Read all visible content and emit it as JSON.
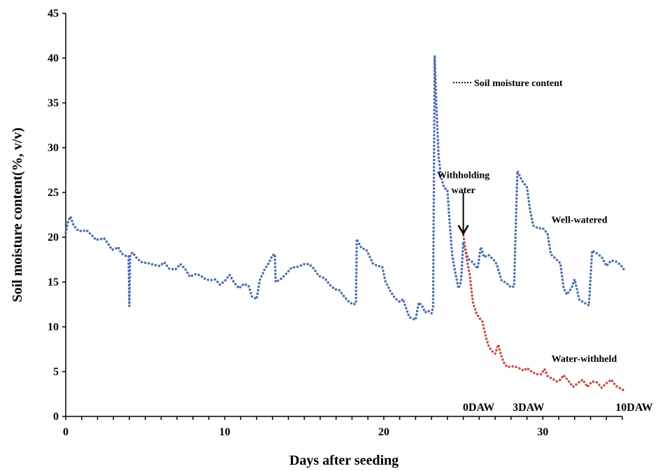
{
  "chart_data": {
    "type": "line",
    "xlabel": "Days after seeding",
    "ylabel": "Soil moisture content(%, v/v)",
    "xlim": [
      0,
      35
    ],
    "ylim": [
      0,
      45
    ],
    "x_ticks": [
      0,
      10,
      20,
      30
    ],
    "y_ticks": [
      0,
      5,
      10,
      15,
      20,
      25,
      30,
      35,
      40,
      45
    ],
    "grid": false,
    "legend": {
      "label": "Soil moisture content",
      "placement": "top-right"
    },
    "series": [
      {
        "name": "Well-watered",
        "color": "#4F6FAF",
        "style": "dotted",
        "points": [
          [
            0,
            20.5
          ],
          [
            0.15,
            21.8
          ],
          [
            0.3,
            22.3
          ],
          [
            0.5,
            21.3
          ],
          [
            0.8,
            20.7
          ],
          [
            1.1,
            20.7
          ],
          [
            1.3,
            20.8
          ],
          [
            1.6,
            20.3
          ],
          [
            1.9,
            19.7
          ],
          [
            2.2,
            19.8
          ],
          [
            2.4,
            19.9
          ],
          [
            2.7,
            19.2
          ],
          [
            2.9,
            18.6
          ],
          [
            3.1,
            18.7
          ],
          [
            3.3,
            18.9
          ],
          [
            3.5,
            18.2
          ],
          [
            3.8,
            17.9
          ],
          [
            3.95,
            17.9
          ],
          [
            4.0,
            12.3
          ],
          [
            4.05,
            18.0
          ],
          [
            4.2,
            18.3
          ],
          [
            4.5,
            17.6
          ],
          [
            4.8,
            17.2
          ],
          [
            5.2,
            17.1
          ],
          [
            5.6,
            16.9
          ],
          [
            5.9,
            16.8
          ],
          [
            6.2,
            17.2
          ],
          [
            6.5,
            16.5
          ],
          [
            6.9,
            16.4
          ],
          [
            7.2,
            17.0
          ],
          [
            7.5,
            16.5
          ],
          [
            7.8,
            15.6
          ],
          [
            8.2,
            15.9
          ],
          [
            8.5,
            15.7
          ],
          [
            8.8,
            15.3
          ],
          [
            9.1,
            15.2
          ],
          [
            9.4,
            15.3
          ],
          [
            9.7,
            14.7
          ],
          [
            10.0,
            15.1
          ],
          [
            10.3,
            15.8
          ],
          [
            10.6,
            14.9
          ],
          [
            10.9,
            14.3
          ],
          [
            11.2,
            14.8
          ],
          [
            11.5,
            14.6
          ],
          [
            11.7,
            13.4
          ],
          [
            12.0,
            13.1
          ],
          [
            12.2,
            15.2
          ],
          [
            12.5,
            16.4
          ],
          [
            12.8,
            17.2
          ],
          [
            13.0,
            18.0
          ],
          [
            13.15,
            18.1
          ],
          [
            13.2,
            15.0
          ],
          [
            13.5,
            15.3
          ],
          [
            13.8,
            15.8
          ],
          [
            14.2,
            16.6
          ],
          [
            14.6,
            16.7
          ],
          [
            15.0,
            17.0
          ],
          [
            15.3,
            17.0
          ],
          [
            15.6,
            16.5
          ],
          [
            15.9,
            15.7
          ],
          [
            16.3,
            15.4
          ],
          [
            16.6,
            14.7
          ],
          [
            16.9,
            14.2
          ],
          [
            17.2,
            14.1
          ],
          [
            17.5,
            13.4
          ],
          [
            17.8,
            12.8
          ],
          [
            18.1,
            12.5
          ],
          [
            18.25,
            12.6
          ],
          [
            18.3,
            19.8
          ],
          [
            18.6,
            18.8
          ],
          [
            18.9,
            18.6
          ],
          [
            19.1,
            17.9
          ],
          [
            19.3,
            17.1
          ],
          [
            19.6,
            16.8
          ],
          [
            19.9,
            16.7
          ],
          [
            20.1,
            15.1
          ],
          [
            20.4,
            14.0
          ],
          [
            20.7,
            13.2
          ],
          [
            21.0,
            12.8
          ],
          [
            21.2,
            13.1
          ],
          [
            21.4,
            12.1
          ],
          [
            21.6,
            11.1
          ],
          [
            21.8,
            10.9
          ],
          [
            22.0,
            10.8
          ],
          [
            22.2,
            12.7
          ],
          [
            22.4,
            12.4
          ],
          [
            22.6,
            11.6
          ],
          [
            22.8,
            11.8
          ],
          [
            23.0,
            11.5
          ],
          [
            23.1,
            12.2
          ],
          [
            23.2,
            40.3
          ],
          [
            23.3,
            35.0
          ],
          [
            23.45,
            29.0
          ],
          [
            23.6,
            26.7
          ],
          [
            23.8,
            25.5
          ],
          [
            24.0,
            25.3
          ],
          [
            24.15,
            21.5
          ],
          [
            24.3,
            18.0
          ],
          [
            24.5,
            16.0
          ],
          [
            24.7,
            14.3
          ],
          [
            24.85,
            15.0
          ],
          [
            25.0,
            19.5
          ],
          [
            25.3,
            17.6
          ],
          [
            25.6,
            17.2
          ],
          [
            25.9,
            16.5
          ],
          [
            26.1,
            18.9
          ],
          [
            26.3,
            17.8
          ],
          [
            26.6,
            18.0
          ],
          [
            26.9,
            17.5
          ],
          [
            27.1,
            17.0
          ],
          [
            27.4,
            15.2
          ],
          [
            27.7,
            14.9
          ],
          [
            28.0,
            14.4
          ],
          [
            28.2,
            14.5
          ],
          [
            28.25,
            18.2
          ],
          [
            28.4,
            27.4
          ],
          [
            28.7,
            26.3
          ],
          [
            29.0,
            25.6
          ],
          [
            29.2,
            23.0
          ],
          [
            29.4,
            21.3
          ],
          [
            29.7,
            21.0
          ],
          [
            30.0,
            21.0
          ],
          [
            30.3,
            20.4
          ],
          [
            30.5,
            18.1
          ],
          [
            30.8,
            17.6
          ],
          [
            31.1,
            17.1
          ],
          [
            31.3,
            14.4
          ],
          [
            31.5,
            13.6
          ],
          [
            31.8,
            14.3
          ],
          [
            32.0,
            15.3
          ],
          [
            32.3,
            13.0
          ],
          [
            32.6,
            12.7
          ],
          [
            32.9,
            12.4
          ],
          [
            33.1,
            18.5
          ],
          [
            33.4,
            18.2
          ],
          [
            33.7,
            17.8
          ],
          [
            34.0,
            16.8
          ],
          [
            34.3,
            17.4
          ],
          [
            34.6,
            17.3
          ],
          [
            34.9,
            16.9
          ],
          [
            35.1,
            16.4
          ]
        ]
      },
      {
        "name": "Water-withheld",
        "color": "#C0504D",
        "style": "dotted",
        "points": [
          [
            25.0,
            20.2
          ],
          [
            25.2,
            17.8
          ],
          [
            25.4,
            15.8
          ],
          [
            25.6,
            12.8
          ],
          [
            25.8,
            11.6
          ],
          [
            26.0,
            11.0
          ],
          [
            26.2,
            10.6
          ],
          [
            26.4,
            9.0
          ],
          [
            26.6,
            7.8
          ],
          [
            26.8,
            7.3
          ],
          [
            27.0,
            7.0
          ],
          [
            27.2,
            8.0
          ],
          [
            27.4,
            6.7
          ],
          [
            27.6,
            5.8
          ],
          [
            27.8,
            5.5
          ],
          [
            28.0,
            5.6
          ],
          [
            28.4,
            5.5
          ],
          [
            28.8,
            5.1
          ],
          [
            29.0,
            5.4
          ],
          [
            29.3,
            5.0
          ],
          [
            29.6,
            4.7
          ],
          [
            29.9,
            4.7
          ],
          [
            30.1,
            5.3
          ],
          [
            30.3,
            4.5
          ],
          [
            30.6,
            4.2
          ],
          [
            30.9,
            3.9
          ],
          [
            31.1,
            4.1
          ],
          [
            31.3,
            4.6
          ],
          [
            31.6,
            4.0
          ],
          [
            31.9,
            3.3
          ],
          [
            32.2,
            3.7
          ],
          [
            32.5,
            4.1
          ],
          [
            32.8,
            3.3
          ],
          [
            33.1,
            3.9
          ],
          [
            33.4,
            3.8
          ],
          [
            33.7,
            3.2
          ],
          [
            34.0,
            3.7
          ],
          [
            34.3,
            4.1
          ],
          [
            34.6,
            3.4
          ],
          [
            34.9,
            3.1
          ],
          [
            35.1,
            2.9
          ]
        ]
      }
    ],
    "annotations": [
      {
        "text": "Withholding",
        "x": 25.0,
        "y": 27.0
      },
      {
        "text": "water",
        "x": 25.0,
        "y": 25.3
      },
      {
        "text": "Well-watered",
        "x": 32.3,
        "y": 22.0
      },
      {
        "text": "Water-withheld",
        "x": 32.6,
        "y": 6.5
      },
      {
        "text": "0DAW",
        "x": 25.0,
        "y": 1.0
      },
      {
        "text": "3DAW",
        "x": 28.0,
        "y": 1.0
      },
      {
        "text": "10DAW",
        "x": 35.1,
        "y": 1.0
      }
    ],
    "arrow": {
      "x": 25.0,
      "y_from": 25.0,
      "y_to": 20.4
    }
  }
}
